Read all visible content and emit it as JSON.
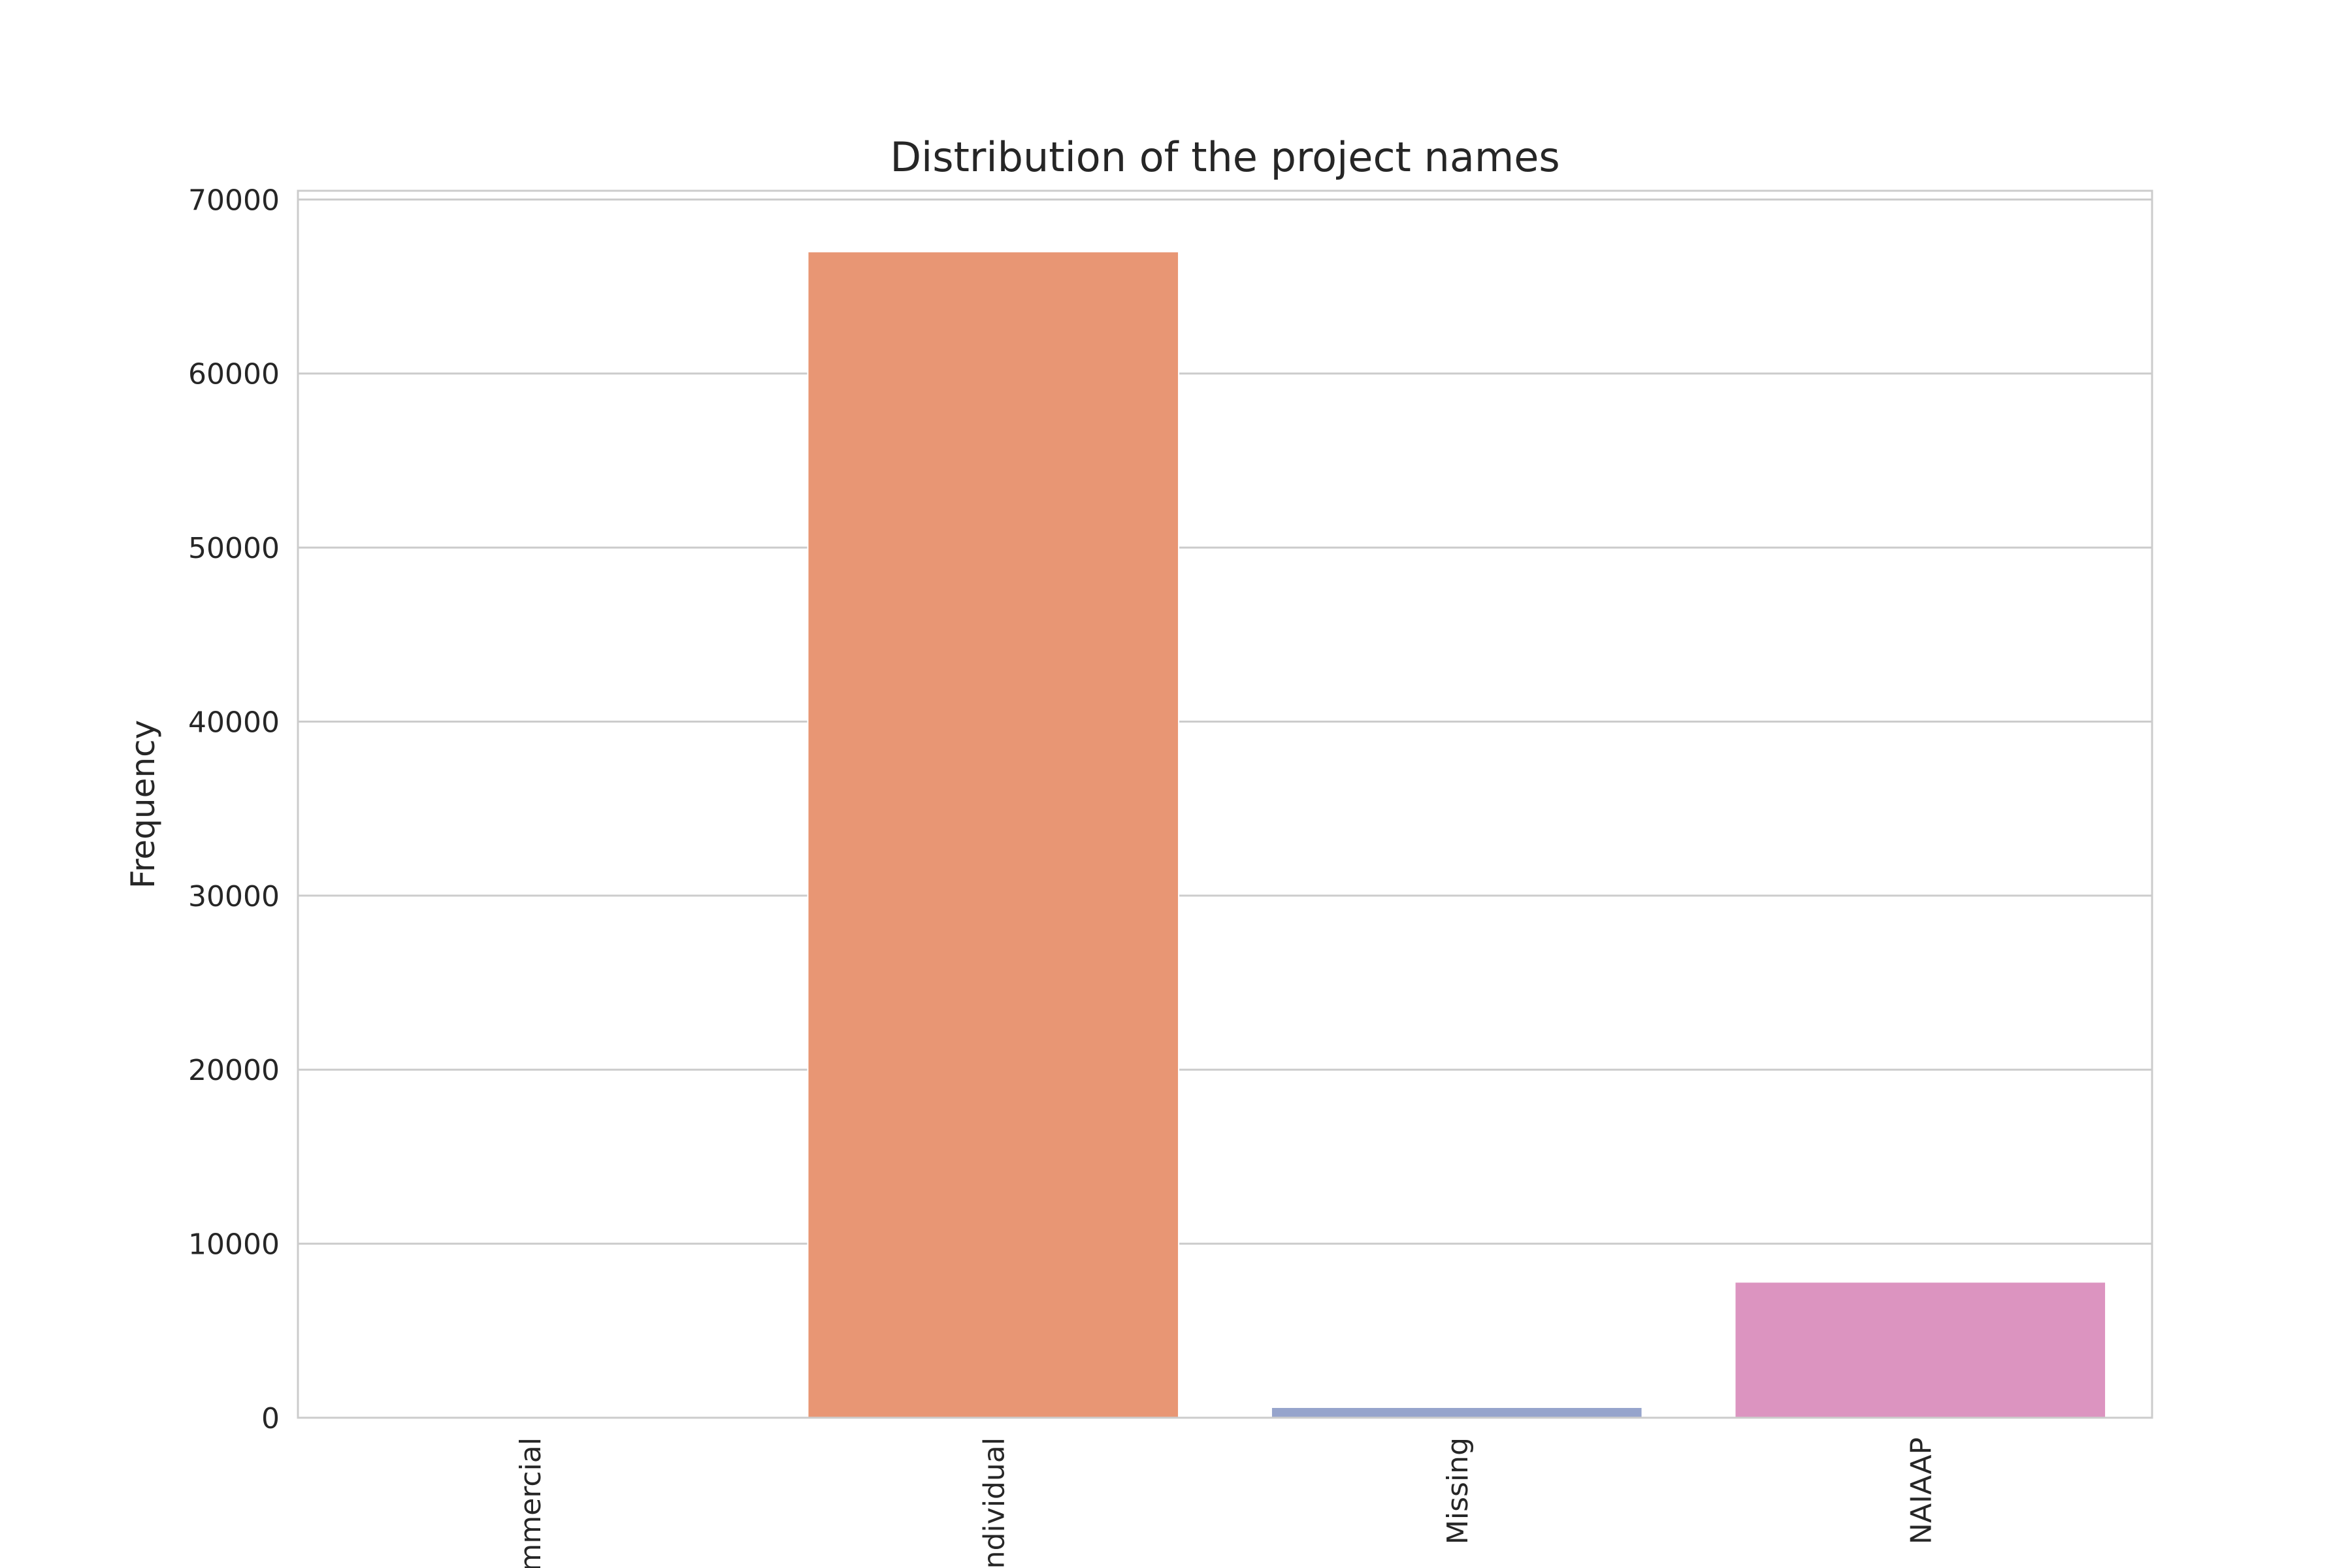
{
  "chart_data": {
    "type": "bar",
    "title": "Distribution of the project names",
    "xlabel": "",
    "ylabel": "Frequency",
    "categories": [
      "mmercial",
      "ndividual",
      "Missing",
      "NAIAAP"
    ],
    "values": [
      0,
      67000,
      600,
      7800
    ],
    "colors": [
      "#66c2a5",
      "#e89674",
      "#96a4cc",
      "#dc94c0"
    ],
    "ylim": [
      0,
      70500
    ],
    "yticks": [
      0,
      10000,
      20000,
      30000,
      40000,
      50000,
      60000,
      70000
    ],
    "ytick_labels": [
      "0",
      "10000",
      "20000",
      "30000",
      "40000",
      "50000",
      "60000",
      "70000"
    ],
    "grid": true,
    "grid_axis": "y",
    "legend": "none"
  }
}
